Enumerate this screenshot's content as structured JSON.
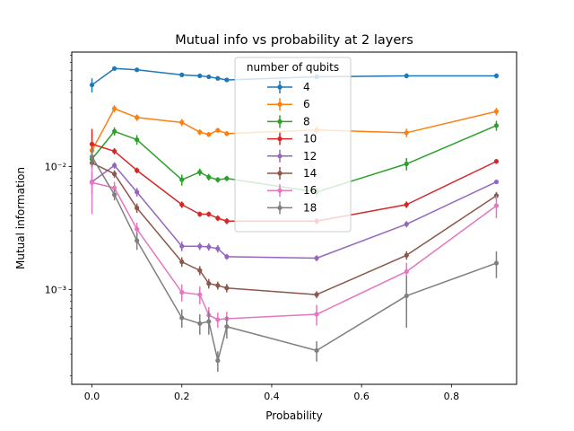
{
  "chart_data": {
    "type": "line",
    "title": "Mutual info vs probability at 2 layers",
    "xlabel": "Probability",
    "ylabel": "Mutual information",
    "xlim": [
      -0.045,
      0.945
    ],
    "ylim": [
      0.00017,
      0.085
    ],
    "yscale": "log",
    "grid": false,
    "x_ticks": [
      0.0,
      0.2,
      0.4,
      0.6,
      0.8
    ],
    "x_tick_labels": [
      "0.0",
      "0.2",
      "0.4",
      "0.6",
      "0.8"
    ],
    "y_ticks": [
      0.001,
      0.01
    ],
    "y_tick_labels": [
      "10⁻³",
      "10⁻²"
    ],
    "legend": {
      "title": "number of qubits",
      "placement": "top-center"
    },
    "x": [
      0.0,
      0.05,
      0.1,
      0.2,
      0.24,
      0.26,
      0.28,
      0.3,
      0.5,
      0.7,
      0.9
    ],
    "series": [
      {
        "name": "4",
        "color": "#1f77b4",
        "values": [
          0.046,
          0.0625,
          0.061,
          0.0555,
          0.0545,
          0.0535,
          0.052,
          0.0505,
          0.0535,
          0.0545,
          0.0545
        ],
        "errors": [
          0.006,
          0.002,
          0.0015,
          0.0015,
          0.0012,
          0.001,
          0.001,
          0.001,
          0.0012,
          0.0025,
          0.0025
        ]
      },
      {
        "name": "6",
        "color": "#ff7f0e",
        "values": [
          0.0135,
          0.0295,
          0.025,
          0.0228,
          0.019,
          0.0182,
          0.0197,
          0.0185,
          0.0198,
          0.0188,
          0.028
        ],
        "errors": [
          0.002,
          0.002,
          0.0015,
          0.0015,
          0.001,
          0.0008,
          0.0008,
          0.0008,
          0.0015,
          0.0015,
          0.002
        ]
      },
      {
        "name": "8",
        "color": "#2ca02c",
        "values": [
          0.0115,
          0.0193,
          0.0165,
          0.0078,
          0.009,
          0.0082,
          0.0078,
          0.008,
          0.0062,
          0.0105,
          0.0215
        ],
        "errors": [
          0.001,
          0.0015,
          0.0015,
          0.0008,
          0.0006,
          0.0005,
          0.0004,
          0.0004,
          0.0005,
          0.0012,
          0.002
        ]
      },
      {
        "name": "10",
        "color": "#d62728",
        "values": [
          0.0152,
          0.0133,
          0.0093,
          0.0049,
          0.0041,
          0.0041,
          0.0038,
          0.0036,
          0.0036,
          0.0049,
          0.011
        ],
        "errors": [
          0.005,
          0.0008,
          0.0005,
          0.0003,
          0.0002,
          0.0002,
          0.0002,
          0.0002,
          0.0002,
          0.0003,
          0.0005
        ]
      },
      {
        "name": "12",
        "color": "#9467bd",
        "values": [
          0.0075,
          0.0102,
          0.0062,
          0.00225,
          0.00225,
          0.00222,
          0.00215,
          0.00185,
          0.0018,
          0.0034,
          0.0075
        ],
        "errors": [
          0.0015,
          0.0006,
          0.0005,
          0.0002,
          0.00015,
          0.00015,
          0.00015,
          0.0001,
          0.0001,
          0.0002,
          0.0003
        ]
      },
      {
        "name": "14",
        "color": "#8c564b",
        "values": [
          0.0107,
          0.0087,
          0.0046,
          0.00168,
          0.00143,
          0.00112,
          0.00108,
          0.00103,
          0.00091,
          0.0019,
          0.0058
        ],
        "errors": [
          0.001,
          0.0006,
          0.0004,
          0.00015,
          0.00012,
          0.0001,
          8e-05,
          8e-05,
          6e-05,
          0.00015,
          0.0004
        ]
      },
      {
        "name": "16",
        "color": "#e377c2",
        "values": [
          0.0074,
          0.0067,
          0.0031,
          0.00095,
          0.00091,
          0.00062,
          0.00057,
          0.00058,
          0.00063,
          0.0014,
          0.0048
        ],
        "errors": [
          0.0033,
          0.0008,
          0.0004,
          0.00015,
          0.00015,
          0.0001,
          8e-05,
          8e-05,
          0.00012,
          0.00025,
          0.001
        ]
      },
      {
        "name": "18",
        "color": "#7f7f7f",
        "values": [
          0.012,
          0.0059,
          0.0025,
          0.00059,
          0.00053,
          0.00055,
          0.000265,
          0.0005,
          0.00032,
          0.00089,
          0.00164
        ],
        "errors": [
          0.002,
          0.0006,
          0.0004,
          0.0001,
          0.0001,
          0.00012,
          5e-05,
          0.0001,
          6e-05,
          0.0004,
          0.0004
        ]
      }
    ]
  }
}
